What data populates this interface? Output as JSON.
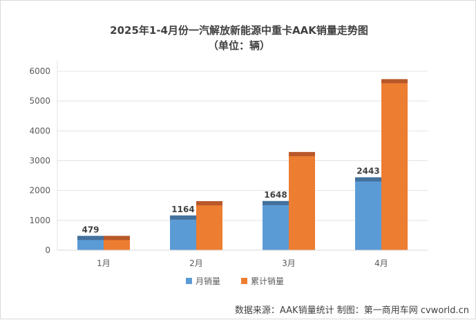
{
  "chart_data": {
    "type": "bar",
    "title": "2025年1-4月份一汽解放新能源中重卡AAK销量走势图",
    "subtitle": "（单位：辆）",
    "categories": [
      "1月",
      "2月",
      "3月",
      "4月"
    ],
    "series": [
      {
        "name": "月销量",
        "values": [
          479,
          1164,
          1648,
          2443
        ],
        "color": "#5b9bd5",
        "cap_color": "#44719c",
        "show_labels": true
      },
      {
        "name": "累计销量",
        "values": [
          479,
          1643,
          3291,
          5734
        ],
        "color": "#ed7d31",
        "cap_color": "#b8582a",
        "show_labels": false
      }
    ],
    "ylim": [
      0,
      6000
    ],
    "yticks": [
      0,
      1000,
      2000,
      3000,
      4000,
      5000,
      6000
    ],
    "grid": true,
    "legend_position": "bottom"
  },
  "footer": "数据来源：AAK销量统计    制图：第一商用车网 cvworld.cn"
}
